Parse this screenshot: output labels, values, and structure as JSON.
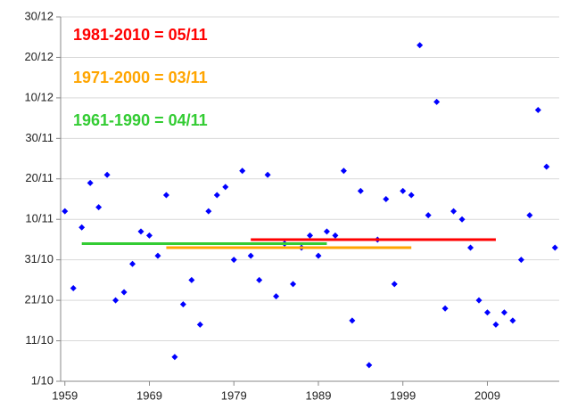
{
  "chart_data": {
    "type": "scatter",
    "x": [
      1959,
      1960,
      1961,
      1962,
      1963,
      1964,
      1965,
      1966,
      1967,
      1968,
      1969,
      1970,
      1971,
      1972,
      1973,
      1974,
      1975,
      1976,
      1977,
      1978,
      1979,
      1980,
      1981,
      1982,
      1983,
      1984,
      1985,
      1986,
      1987,
      1988,
      1989,
      1990,
      1991,
      1992,
      1993,
      1994,
      1995,
      1996,
      1997,
      1998,
      1999,
      2000,
      2001,
      2002,
      2003,
      2004,
      2005,
      2006,
      2007,
      2008,
      2009,
      2010,
      2011,
      2012,
      2013,
      2014,
      2015,
      2016,
      2017
    ],
    "values": [
      42,
      23,
      38,
      49,
      43,
      51,
      20,
      22,
      29,
      37,
      36,
      31,
      46,
      6,
      19,
      25,
      14,
      42,
      46,
      48,
      30,
      52,
      31,
      25,
      51,
      21,
      34,
      24,
      33,
      36,
      31,
      37,
      36,
      52,
      15,
      47,
      4,
      35,
      45,
      24,
      47,
      46,
      83,
      41,
      69,
      18,
      42,
      40,
      33,
      20,
      17,
      14,
      17,
      15,
      30,
      41,
      67,
      53,
      33
    ],
    "color": "#0000ff",
    "xlim": [
      1958.5,
      2017.5
    ],
    "xticks": [
      1959,
      1969,
      1979,
      1989,
      1999,
      2009
    ],
    "ylim": [
      0,
      90
    ],
    "yticks": [
      {
        "value": 0,
        "label": "1/10"
      },
      {
        "value": 10,
        "label": "11/10"
      },
      {
        "value": 20,
        "label": "21/10"
      },
      {
        "value": 30,
        "label": "31/10"
      },
      {
        "value": 40,
        "label": "10/11"
      },
      {
        "value": 50,
        "label": "20/11"
      },
      {
        "value": 60,
        "label": "30/11"
      },
      {
        "value": 70,
        "label": "10/12"
      },
      {
        "value": 80,
        "label": "20/12"
      },
      {
        "value": 90,
        "label": "30/12"
      }
    ],
    "grid": true,
    "means": [
      {
        "label": "1981-2010 = 05/11",
        "color": "#ff0000",
        "value": 35,
        "x": [
          1981,
          2010
        ]
      },
      {
        "label": "1971-2000 = 03/11",
        "color": "#ffa500",
        "value": 33,
        "x": [
          1971,
          2000
        ]
      },
      {
        "label": "1961-1990 = 04/11",
        "color": "#33cc33",
        "value": 34,
        "x": [
          1961,
          1990
        ]
      }
    ]
  }
}
